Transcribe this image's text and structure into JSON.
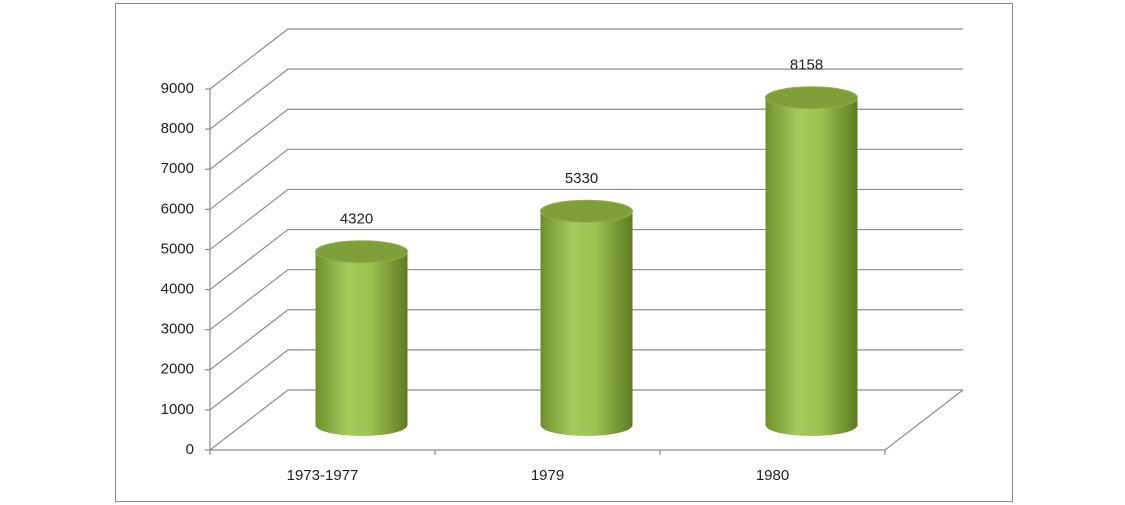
{
  "chart_data": {
    "type": "bar",
    "categories": [
      "1973-1977",
      "1979",
      "1980"
    ],
    "values": [
      4320,
      5330,
      8158
    ],
    "color": "#9bc050",
    "ylim": [
      0,
      9000
    ],
    "yticks": [
      0,
      1000,
      2000,
      3000,
      4000,
      5000,
      6000,
      7000,
      8000,
      9000
    ],
    "grid": true
  }
}
